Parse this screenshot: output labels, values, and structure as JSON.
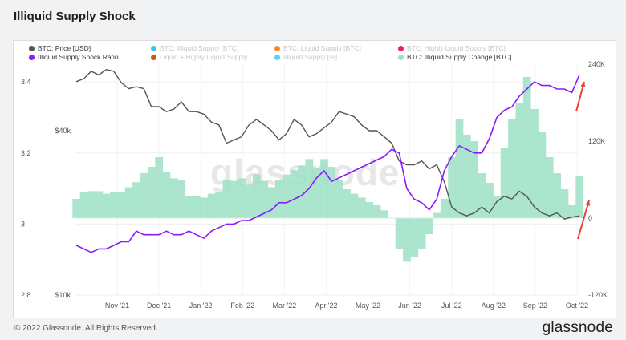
{
  "title": "Illiquid Supply Shock",
  "legend": [
    {
      "label": "BTC: Price [USD]",
      "color": "#555555",
      "faded": false
    },
    {
      "label": "BTC: Illiquid Supply [BTC]",
      "color": "#3ec4e6",
      "faded": true
    },
    {
      "label": "BTC: Liquid Supply [BTC]",
      "color": "#f5892a",
      "faded": true
    },
    {
      "label": "BTC: Highly Liquid Supply [BTC]",
      "color": "#e6245c",
      "faded": true
    },
    {
      "label": "Illiquid Supply Shock Ratio",
      "color": "#8c1aff",
      "faded": false
    },
    {
      "label": "Liquid + Highly Liquid Supply",
      "color": "#d2580e",
      "faded": true
    },
    {
      "label": "Illiquid Supply [%]",
      "color": "#55d6e8",
      "faded": true
    },
    {
      "label": "BTC: Illiquid Supply Change [BTC]",
      "color": "#9ee0c4",
      "faded": false
    }
  ],
  "watermark": "glassnode",
  "footer": "© 2022 Glassnode. All Rights Reserved.",
  "brand": "glassnode",
  "chart_data": {
    "type": "line",
    "x_ticks": [
      "Nov '21",
      "Dec '21",
      "Jan '22",
      "Feb '22",
      "Mar '22",
      "Apr '22",
      "May '22",
      "Jun '22",
      "Jul '22",
      "Aug '22",
      "Sep '22",
      "Oct '22"
    ],
    "left_axis_ticks": [
      "3.4",
      "3.2",
      "3",
      "2.8"
    ],
    "left_axis_range": [
      2.8,
      3.45
    ],
    "price_axis_ticks": [
      "$40k",
      "$10k"
    ],
    "price_axis_scale": "log",
    "right_axis_ticks": [
      "240K",
      "120K",
      "0",
      "-120K"
    ],
    "right_axis_range": [
      -120000,
      240000
    ],
    "colors": {
      "price": "#555555",
      "ratio": "#8c1aff",
      "change": "#9ee0c4",
      "arrow": "#e8413a"
    },
    "series": [
      {
        "name": "BTC: Price [USD]",
        "axis": "price",
        "values": [
          60500,
          62000,
          66000,
          64000,
          67000,
          66000,
          60000,
          57000,
          58000,
          57000,
          49000,
          49000,
          47000,
          48000,
          51000,
          47000,
          47000,
          46000,
          43000,
          42000,
          36000,
          37000,
          38000,
          42000,
          44000,
          42000,
          40000,
          37000,
          39000,
          44000,
          42000,
          38000,
          39000,
          41000,
          43000,
          47000,
          46000,
          45000,
          42000,
          40000,
          40000,
          38000,
          36000,
          31000,
          30000,
          30000,
          31000,
          29000,
          30000,
          26000,
          21000,
          20000,
          19500,
          20000,
          21000,
          20000,
          22000,
          23000,
          22500,
          24000,
          23000,
          21000,
          20000,
          19500,
          20000,
          19000,
          19300,
          19500
        ]
      },
      {
        "name": "Illiquid Supply Shock Ratio",
        "axis": "left",
        "values": [
          2.94,
          2.93,
          2.92,
          2.93,
          2.93,
          2.94,
          2.95,
          2.95,
          2.98,
          2.97,
          2.97,
          2.97,
          2.98,
          2.97,
          2.97,
          2.98,
          2.97,
          2.96,
          2.98,
          2.99,
          3.0,
          3.0,
          3.01,
          3.01,
          3.02,
          3.03,
          3.04,
          3.06,
          3.06,
          3.07,
          3.08,
          3.1,
          3.13,
          3.15,
          3.12,
          3.13,
          3.14,
          3.15,
          3.16,
          3.17,
          3.18,
          3.19,
          3.21,
          3.2,
          3.1,
          3.07,
          3.06,
          3.04,
          3.07,
          3.15,
          3.19,
          3.22,
          3.21,
          3.2,
          3.2,
          3.24,
          3.3,
          3.32,
          3.33,
          3.36,
          3.38,
          3.4,
          3.39,
          3.39,
          3.38,
          3.38,
          3.37,
          3.42
        ]
      },
      {
        "name": "BTC: Illiquid Supply Change [BTC]",
        "axis": "right",
        "kind": "area",
        "values": [
          30000,
          40000,
          42000,
          42000,
          38000,
          40000,
          40000,
          48000,
          56000,
          70000,
          80000,
          95000,
          72000,
          62000,
          60000,
          35000,
          35000,
          32000,
          38000,
          40000,
          60000,
          58000,
          62000,
          52000,
          68000,
          58000,
          48000,
          60000,
          68000,
          75000,
          82000,
          92000,
          78000,
          92000,
          80000,
          60000,
          45000,
          38000,
          32000,
          25000,
          20000,
          12000,
          0,
          -48000,
          -68000,
          -60000,
          -48000,
          -25000,
          8000,
          30000,
          95000,
          155000,
          130000,
          120000,
          70000,
          55000,
          35000,
          110000,
          155000,
          180000,
          220000,
          170000,
          135000,
          95000,
          70000,
          45000,
          20000,
          65000
        ]
      }
    ]
  }
}
